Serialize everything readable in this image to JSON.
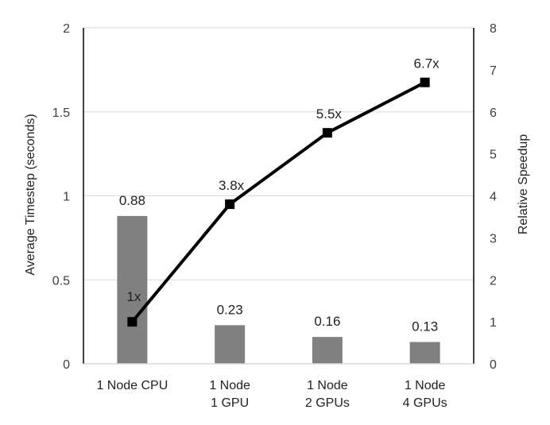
{
  "chart_data": {
    "type": "bar",
    "categories": [
      [
        "1 Node CPU"
      ],
      [
        "1 Node",
        "1 GPU"
      ],
      [
        "1 Node",
        "2 GPUs"
      ],
      [
        "1 Node",
        "4 GPUs"
      ]
    ],
    "bars": {
      "values": [
        0.88,
        0.23,
        0.16,
        0.13
      ],
      "labels": [
        "0.88",
        "0.23",
        "0.16",
        "0.13"
      ],
      "color": "#808080"
    },
    "line": {
      "type": "line",
      "values": [
        1,
        3.8,
        5.5,
        6.7
      ],
      "labels": [
        "1x",
        "3.8x",
        "5.5x",
        "6.7x"
      ],
      "color": "#000000",
      "marker": "square"
    },
    "y_left": {
      "label": "Average Timestep (seconds)",
      "ylim": [
        0,
        2
      ],
      "ticks": [
        "0",
        "0.5",
        "1",
        "1.5",
        "2"
      ],
      "tick_values": [
        0,
        0.5,
        1,
        1.5,
        2
      ]
    },
    "y_right": {
      "label": "Relative Speedup",
      "ylim": [
        0,
        8
      ],
      "ticks": [
        "0",
        "1",
        "2",
        "3",
        "4",
        "5",
        "6",
        "7",
        "8"
      ],
      "tick_values": [
        0,
        1,
        2,
        3,
        4,
        5,
        6,
        7,
        8
      ]
    },
    "grid": true,
    "legend": "none"
  }
}
